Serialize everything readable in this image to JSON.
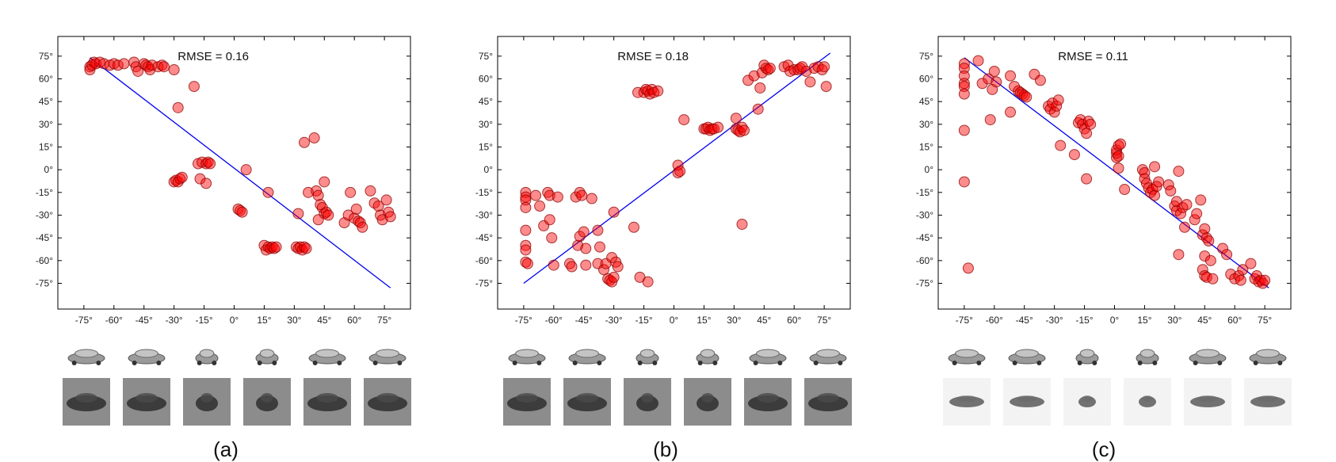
{
  "chart_data": [
    {
      "type": "scatter",
      "caption": "(a)",
      "annotation": {
        "label": "RMSE =",
        "value": "0.16"
      },
      "xlim": [
        -88,
        88
      ],
      "ylim": [
        -92,
        88
      ],
      "xticks": [
        -75,
        -60,
        -45,
        -30,
        -15,
        0,
        15,
        30,
        45,
        60,
        75
      ],
      "yticks": [
        75,
        60,
        45,
        30,
        15,
        0,
        -15,
        -30,
        -45,
        -60,
        -75
      ],
      "tick_suffix": "°",
      "fit_line": [
        [
          -72,
          74
        ],
        [
          78,
          -78
        ]
      ],
      "points": [
        [
          -72,
          68
        ],
        [
          -72,
          66
        ],
        [
          -71,
          69
        ],
        [
          -70,
          71
        ],
        [
          -69,
          70
        ],
        [
          -67,
          71
        ],
        [
          -65,
          70
        ],
        [
          -62,
          69
        ],
        [
          -60,
          70
        ],
        [
          -58,
          69
        ],
        [
          -55,
          70
        ],
        [
          -50,
          71
        ],
        [
          -49,
          68
        ],
        [
          -48,
          65
        ],
        [
          -45,
          70
        ],
        [
          -44,
          69
        ],
        [
          -43,
          68
        ],
        [
          -42,
          66
        ],
        [
          -41,
          69
        ],
        [
          -38,
          68
        ],
        [
          -36,
          69
        ],
        [
          -35,
          68
        ],
        [
          -30,
          66
        ],
        [
          -28,
          41
        ],
        [
          -20,
          55
        ],
        [
          -30,
          -8
        ],
        [
          -29,
          -7
        ],
        [
          -28,
          -8
        ],
        [
          -27,
          -6
        ],
        [
          -26,
          -5
        ],
        [
          -18,
          4
        ],
        [
          -16,
          5
        ],
        [
          -14,
          4
        ],
        [
          -13,
          5
        ],
        [
          -12,
          4
        ],
        [
          -17,
          -6
        ],
        [
          -14,
          -9
        ],
        [
          6,
          0
        ],
        [
          2,
          -26
        ],
        [
          3,
          -27
        ],
        [
          4,
          -28
        ],
        [
          17,
          -15
        ],
        [
          15,
          -50
        ],
        [
          16,
          -53
        ],
        [
          17,
          -51
        ],
        [
          18,
          -52
        ],
        [
          19,
          -51
        ],
        [
          20,
          -52
        ],
        [
          21,
          -51
        ],
        [
          31,
          -51
        ],
        [
          32,
          -52
        ],
        [
          33,
          -51
        ],
        [
          34,
          -53
        ],
        [
          35,
          -51
        ],
        [
          36,
          -52
        ],
        [
          32,
          -29
        ],
        [
          35,
          18
        ],
        [
          40,
          21
        ],
        [
          37,
          -15
        ],
        [
          41,
          -14
        ],
        [
          42,
          -17
        ],
        [
          43,
          -23
        ],
        [
          44,
          -25
        ],
        [
          45,
          -29
        ],
        [
          46,
          -28
        ],
        [
          47,
          -30
        ],
        [
          45,
          -8
        ],
        [
          42,
          -33
        ],
        [
          55,
          -35
        ],
        [
          57,
          -30
        ],
        [
          58,
          -15
        ],
        [
          60,
          -32
        ],
        [
          61,
          -26
        ],
        [
          62,
          -34
        ],
        [
          63,
          -35
        ],
        [
          64,
          -38
        ],
        [
          68,
          -14
        ],
        [
          70,
          -22
        ],
        [
          72,
          -24
        ],
        [
          73,
          -30
        ],
        [
          74,
          -33
        ],
        [
          76,
          -20
        ],
        [
          77,
          -28
        ],
        [
          78,
          -31
        ]
      ]
    },
    {
      "type": "scatter",
      "caption": "(b)",
      "annotation": {
        "label": "RMSE =",
        "value": "0.18"
      },
      "xlim": [
        -88,
        88
      ],
      "ylim": [
        -92,
        88
      ],
      "xticks": [
        -75,
        -60,
        -45,
        -30,
        -15,
        0,
        15,
        30,
        45,
        60,
        75
      ],
      "yticks": [
        75,
        60,
        45,
        30,
        15,
        0,
        -15,
        -30,
        -45,
        -60,
        -75
      ],
      "tick_suffix": "°",
      "fit_line": [
        [
          -75,
          -75
        ],
        [
          78,
          77
        ]
      ],
      "points": [
        [
          -74,
          -15
        ],
        [
          -74,
          -18
        ],
        [
          -74,
          -20
        ],
        [
          -74,
          -25
        ],
        [
          -74,
          -40
        ],
        [
          -74,
          -50
        ],
        [
          -74,
          -53
        ],
        [
          -74,
          -61
        ],
        [
          -73,
          -62
        ],
        [
          -69,
          -17
        ],
        [
          -67,
          -24
        ],
        [
          -65,
          -37
        ],
        [
          -63,
          -15
        ],
        [
          -62,
          -17
        ],
        [
          -62,
          -33
        ],
        [
          -61,
          -45
        ],
        [
          -58,
          -18
        ],
        [
          -60,
          -63
        ],
        [
          -52,
          -62
        ],
        [
          -51,
          -64
        ],
        [
          -49,
          -18
        ],
        [
          -48,
          -50
        ],
        [
          -47,
          -44
        ],
        [
          -47,
          -15
        ],
        [
          -46,
          -17
        ],
        [
          -45,
          -41
        ],
        [
          -44,
          -52
        ],
        [
          -44,
          -63
        ],
        [
          -41,
          -19
        ],
        [
          -38,
          -40
        ],
        [
          -38,
          -62
        ],
        [
          -37,
          -51
        ],
        [
          -35,
          -66
        ],
        [
          -34,
          -62
        ],
        [
          -33,
          -72
        ],
        [
          -32,
          -73
        ],
        [
          -31,
          -74
        ],
        [
          -30,
          -71
        ],
        [
          -31,
          -58
        ],
        [
          -30,
          -28
        ],
        [
          -29,
          -61
        ],
        [
          -28,
          -64
        ],
        [
          -20,
          -38
        ],
        [
          -17,
          -71
        ],
        [
          -13,
          -74
        ],
        [
          -18,
          51
        ],
        [
          -15,
          51
        ],
        [
          -14,
          53
        ],
        [
          -13,
          52
        ],
        [
          -12,
          50
        ],
        [
          -11,
          53
        ],
        [
          -10,
          51
        ],
        [
          -8,
          52
        ],
        [
          2,
          -2
        ],
        [
          2,
          3
        ],
        [
          3,
          -1
        ],
        [
          5,
          33
        ],
        [
          15,
          27
        ],
        [
          16,
          27
        ],
        [
          17,
          28
        ],
        [
          18,
          26
        ],
        [
          19,
          27
        ],
        [
          20,
          27
        ],
        [
          22,
          28
        ],
        [
          31,
          34
        ],
        [
          31,
          27
        ],
        [
          32,
          26
        ],
        [
          33,
          25
        ],
        [
          34,
          28
        ],
        [
          35,
          26
        ],
        [
          34,
          -36
        ],
        [
          37,
          59
        ],
        [
          40,
          62
        ],
        [
          42,
          40
        ],
        [
          43,
          54
        ],
        [
          44,
          64
        ],
        [
          45,
          69
        ],
        [
          46,
          67
        ],
        [
          47,
          66
        ],
        [
          48,
          67
        ],
        [
          55,
          68
        ],
        [
          57,
          69
        ],
        [
          58,
          65
        ],
        [
          60,
          66
        ],
        [
          62,
          66
        ],
        [
          63,
          67
        ],
        [
          64,
          68
        ],
        [
          66,
          65
        ],
        [
          68,
          58
        ],
        [
          70,
          67
        ],
        [
          72,
          68
        ],
        [
          74,
          66
        ],
        [
          75,
          68
        ],
        [
          76,
          55
        ]
      ]
    },
    {
      "type": "scatter",
      "caption": "(c)",
      "annotation": {
        "label": "RMSE =",
        "value": "0.11"
      },
      "xlim": [
        -88,
        88
      ],
      "ylim": [
        -92,
        88
      ],
      "xticks": [
        -75,
        -60,
        -45,
        -30,
        -15,
        0,
        15,
        30,
        45,
        60,
        75
      ],
      "yticks": [
        75,
        60,
        45,
        30,
        15,
        0,
        -15,
        -30,
        -45,
        -60,
        -75
      ],
      "tick_suffix": "°",
      "fit_line": [
        [
          -75,
          74
        ],
        [
          77,
          -78
        ]
      ],
      "points": [
        [
          -75,
          70
        ],
        [
          -75,
          67
        ],
        [
          -75,
          62
        ],
        [
          -75,
          57
        ],
        [
          -75,
          55
        ],
        [
          -75,
          50
        ],
        [
          -75,
          26
        ],
        [
          -75,
          -8
        ],
        [
          -73,
          -65
        ],
        [
          -68,
          72
        ],
        [
          -66,
          57
        ],
        [
          -63,
          60
        ],
        [
          -62,
          33
        ],
        [
          -61,
          53
        ],
        [
          -60,
          65
        ],
        [
          -59,
          58
        ],
        [
          -52,
          38
        ],
        [
          -52,
          62
        ],
        [
          -50,
          55
        ],
        [
          -48,
          52
        ],
        [
          -47,
          51
        ],
        [
          -46,
          50
        ],
        [
          -45,
          49
        ],
        [
          -44,
          48
        ],
        [
          -40,
          63
        ],
        [
          -37,
          59
        ],
        [
          -33,
          42
        ],
        [
          -32,
          40
        ],
        [
          -31,
          44
        ],
        [
          -30,
          38
        ],
        [
          -29,
          42
        ],
        [
          -28,
          46
        ],
        [
          -27,
          16
        ],
        [
          -20,
          10
        ],
        [
          -18,
          31
        ],
        [
          -17,
          33
        ],
        [
          -16,
          30
        ],
        [
          -15,
          27
        ],
        [
          -14,
          24
        ],
        [
          -13,
          32
        ],
        [
          -12,
          30
        ],
        [
          -14,
          -6
        ],
        [
          1,
          8
        ],
        [
          1,
          11
        ],
        [
          1,
          13
        ],
        [
          2,
          16
        ],
        [
          2,
          1
        ],
        [
          2,
          9
        ],
        [
          3,
          17
        ],
        [
          5,
          -13
        ],
        [
          14,
          0
        ],
        [
          15,
          -2
        ],
        [
          15,
          -6
        ],
        [
          16,
          -9
        ],
        [
          17,
          -12
        ],
        [
          18,
          -15
        ],
        [
          19,
          -13
        ],
        [
          20,
          -17
        ],
        [
          21,
          -11
        ],
        [
          20,
          2
        ],
        [
          22,
          -8
        ],
        [
          27,
          -10
        ],
        [
          28,
          -14
        ],
        [
          30,
          -24
        ],
        [
          31,
          -27
        ],
        [
          31,
          -21
        ],
        [
          32,
          -1
        ],
        [
          32,
          -56
        ],
        [
          33,
          -29
        ],
        [
          34,
          -25
        ],
        [
          35,
          -38
        ],
        [
          36,
          -23
        ],
        [
          40,
          -33
        ],
        [
          41,
          -29
        ],
        [
          43,
          -20
        ],
        [
          44,
          -43
        ],
        [
          45,
          -39
        ],
        [
          46,
          -45
        ],
        [
          47,
          -47
        ],
        [
          45,
          -57
        ],
        [
          44,
          -66
        ],
        [
          45,
          -70
        ],
        [
          46,
          -71
        ],
        [
          48,
          -60
        ],
        [
          49,
          -72
        ],
        [
          54,
          -52
        ],
        [
          56,
          -56
        ],
        [
          58,
          -69
        ],
        [
          60,
          -72
        ],
        [
          62,
          -70
        ],
        [
          63,
          -73
        ],
        [
          64,
          -66
        ],
        [
          68,
          -62
        ],
        [
          70,
          -72
        ],
        [
          71,
          -70
        ],
        [
          72,
          -74
        ],
        [
          73,
          -73
        ],
        [
          74,
          -75
        ],
        [
          75,
          -73
        ]
      ]
    }
  ],
  "thumbnails": [
    {
      "label": "car rendering strip (a)",
      "style": "gray"
    },
    {
      "label": "car rendering strip (b)",
      "style": "gray"
    },
    {
      "label": "car rendering strip (c)",
      "style": "light"
    }
  ]
}
